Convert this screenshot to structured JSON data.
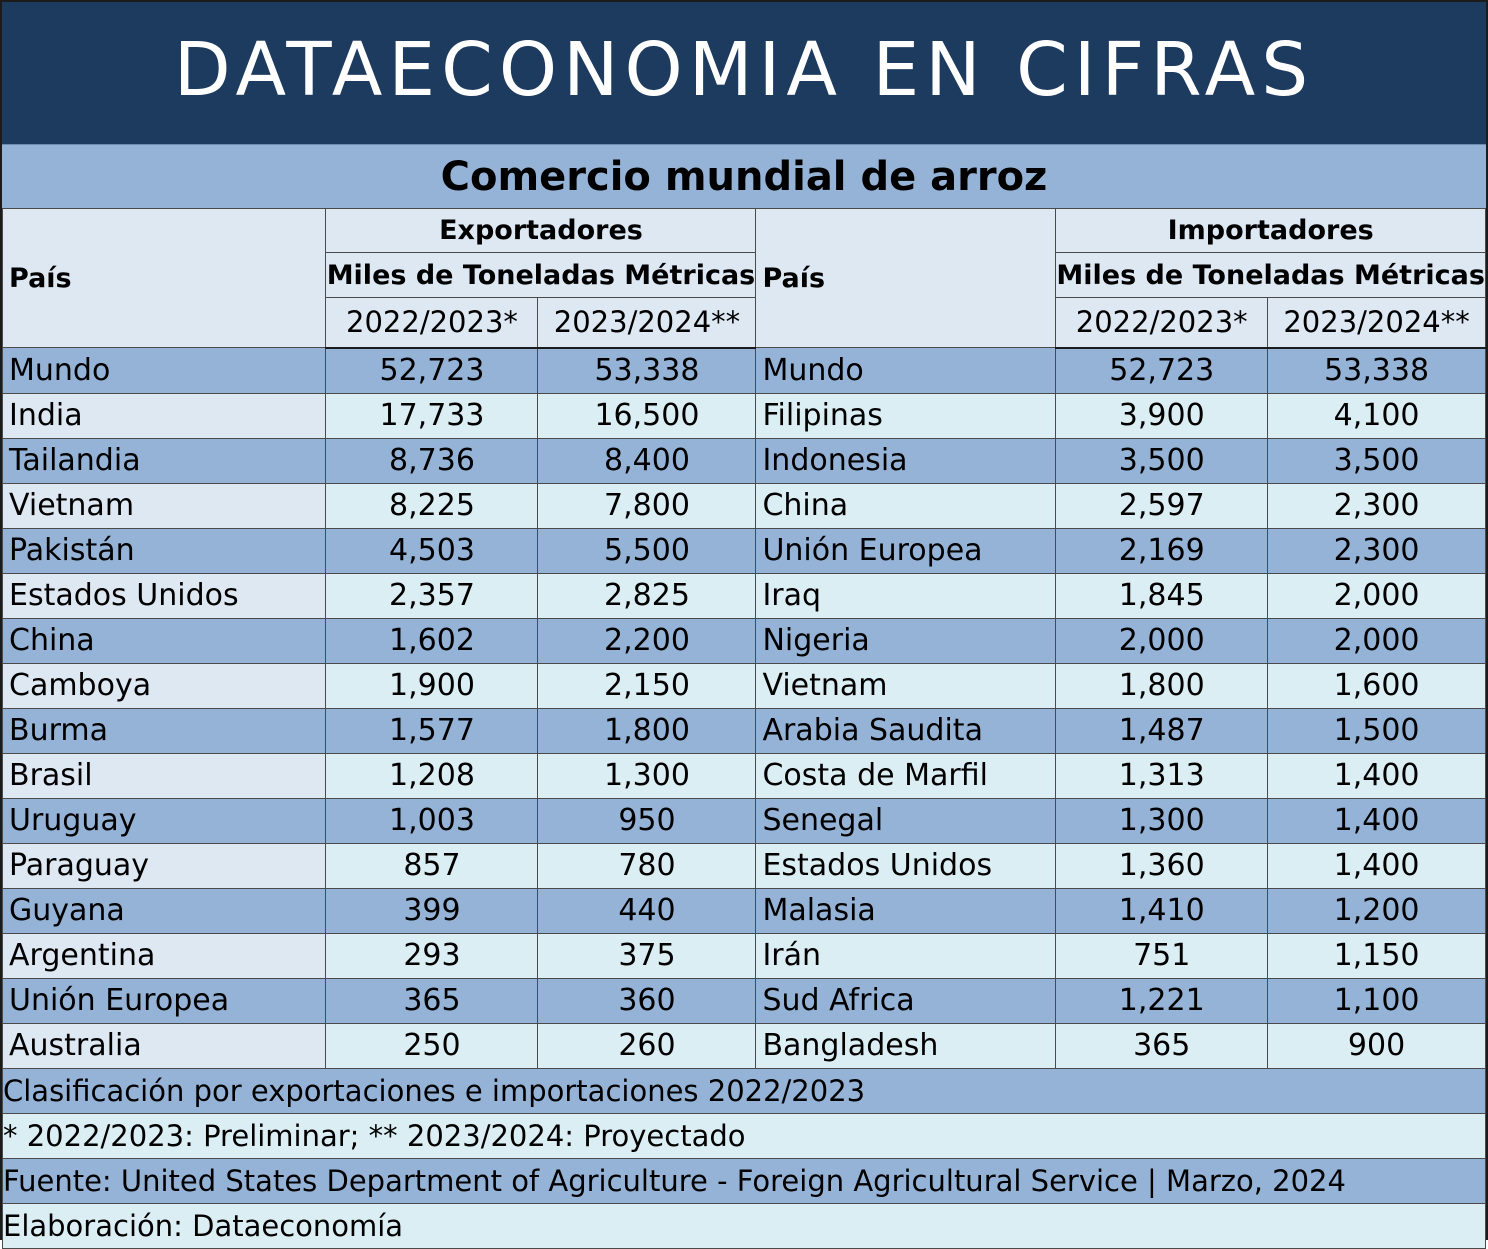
{
  "banner": {
    "title": "DATAECONOMIA EN CIFRAS"
  },
  "subtitle": "Comercio mundial de arroz",
  "headers": {
    "pais": "País",
    "exportadores": "Exportadores",
    "importadores": "Importadores",
    "unidad": "Miles de Toneladas Métricas",
    "year1": "2022/2023*",
    "year2": "2023/2024**"
  },
  "rows": [
    {
      "exp_pais": "Mundo",
      "exp_2223": "52,723",
      "exp_2324": "53,338",
      "imp_pais": "Mundo",
      "imp_2223": "52,723",
      "imp_2324": "53,338"
    },
    {
      "exp_pais": "India",
      "exp_2223": "17,733",
      "exp_2324": "16,500",
      "imp_pais": "Filipinas",
      "imp_2223": "3,900",
      "imp_2324": "4,100"
    },
    {
      "exp_pais": "Tailandia",
      "exp_2223": "8,736",
      "exp_2324": "8,400",
      "imp_pais": "Indonesia",
      "imp_2223": "3,500",
      "imp_2324": "3,500"
    },
    {
      "exp_pais": "Vietnam",
      "exp_2223": "8,225",
      "exp_2324": "7,800",
      "imp_pais": "China",
      "imp_2223": "2,597",
      "imp_2324": "2,300"
    },
    {
      "exp_pais": "Pakistán",
      "exp_2223": "4,503",
      "exp_2324": "5,500",
      "imp_pais": "Unión Europea",
      "imp_2223": "2,169",
      "imp_2324": "2,300"
    },
    {
      "exp_pais": "Estados Unidos",
      "exp_2223": "2,357",
      "exp_2324": "2,825",
      "imp_pais": "Iraq",
      "imp_2223": "1,845",
      "imp_2324": "2,000"
    },
    {
      "exp_pais": "China",
      "exp_2223": "1,602",
      "exp_2324": "2,200",
      "imp_pais": "Nigeria",
      "imp_2223": "2,000",
      "imp_2324": "2,000"
    },
    {
      "exp_pais": "Camboya",
      "exp_2223": "1,900",
      "exp_2324": "2,150",
      "imp_pais": "Vietnam",
      "imp_2223": "1,800",
      "imp_2324": "1,600"
    },
    {
      "exp_pais": "Burma",
      "exp_2223": "1,577",
      "exp_2324": "1,800",
      "imp_pais": "Arabia Saudita",
      "imp_2223": "1,487",
      "imp_2324": "1,500"
    },
    {
      "exp_pais": "Brasil",
      "exp_2223": "1,208",
      "exp_2324": "1,300",
      "imp_pais": "Costa de Marfil",
      "imp_2223": "1,313",
      "imp_2324": "1,400"
    },
    {
      "exp_pais": "Uruguay",
      "exp_2223": "1,003",
      "exp_2324": "950",
      "imp_pais": "Senegal",
      "imp_2223": "1,300",
      "imp_2324": "1,400"
    },
    {
      "exp_pais": "Paraguay",
      "exp_2223": "857",
      "exp_2324": "780",
      "imp_pais": "Estados Unidos",
      "imp_2223": "1,360",
      "imp_2324": "1,400"
    },
    {
      "exp_pais": "Guyana",
      "exp_2223": "399",
      "exp_2324": "440",
      "imp_pais": "Malasia",
      "imp_2223": "1,410",
      "imp_2324": "1,200"
    },
    {
      "exp_pais": "Argentina",
      "exp_2223": "293",
      "exp_2324": "375",
      "imp_pais": "Irán",
      "imp_2223": "751",
      "imp_2324": "1,150"
    },
    {
      "exp_pais": "Unión Europea",
      "exp_2223": "365",
      "exp_2324": "360",
      "imp_pais": "Sud Africa",
      "imp_2223": "1,221",
      "imp_2324": "1,100"
    },
    {
      "exp_pais": "Australia",
      "exp_2223": "250",
      "exp_2324": "260",
      "imp_pais": "Bangladesh",
      "imp_2223": "365",
      "imp_2324": "900"
    }
  ],
  "footer": {
    "clasificacion": "Clasificación por exportaciones e importaciones 2022/2023",
    "notas": "* 2022/2023: Preliminar; ** 2023/2024: Proyectado",
    "fuente": "Fuente: United States Department of Agriculture - Foreign Agricultural Service | Marzo, 2024",
    "elaboracion": "Elaboración: Dataeconomía"
  },
  "colors": {
    "banner": "#1d3a5f",
    "band_dark": "#95b3d7",
    "band_light": "#dbeef4",
    "header_bg": "#dde8f3"
  }
}
